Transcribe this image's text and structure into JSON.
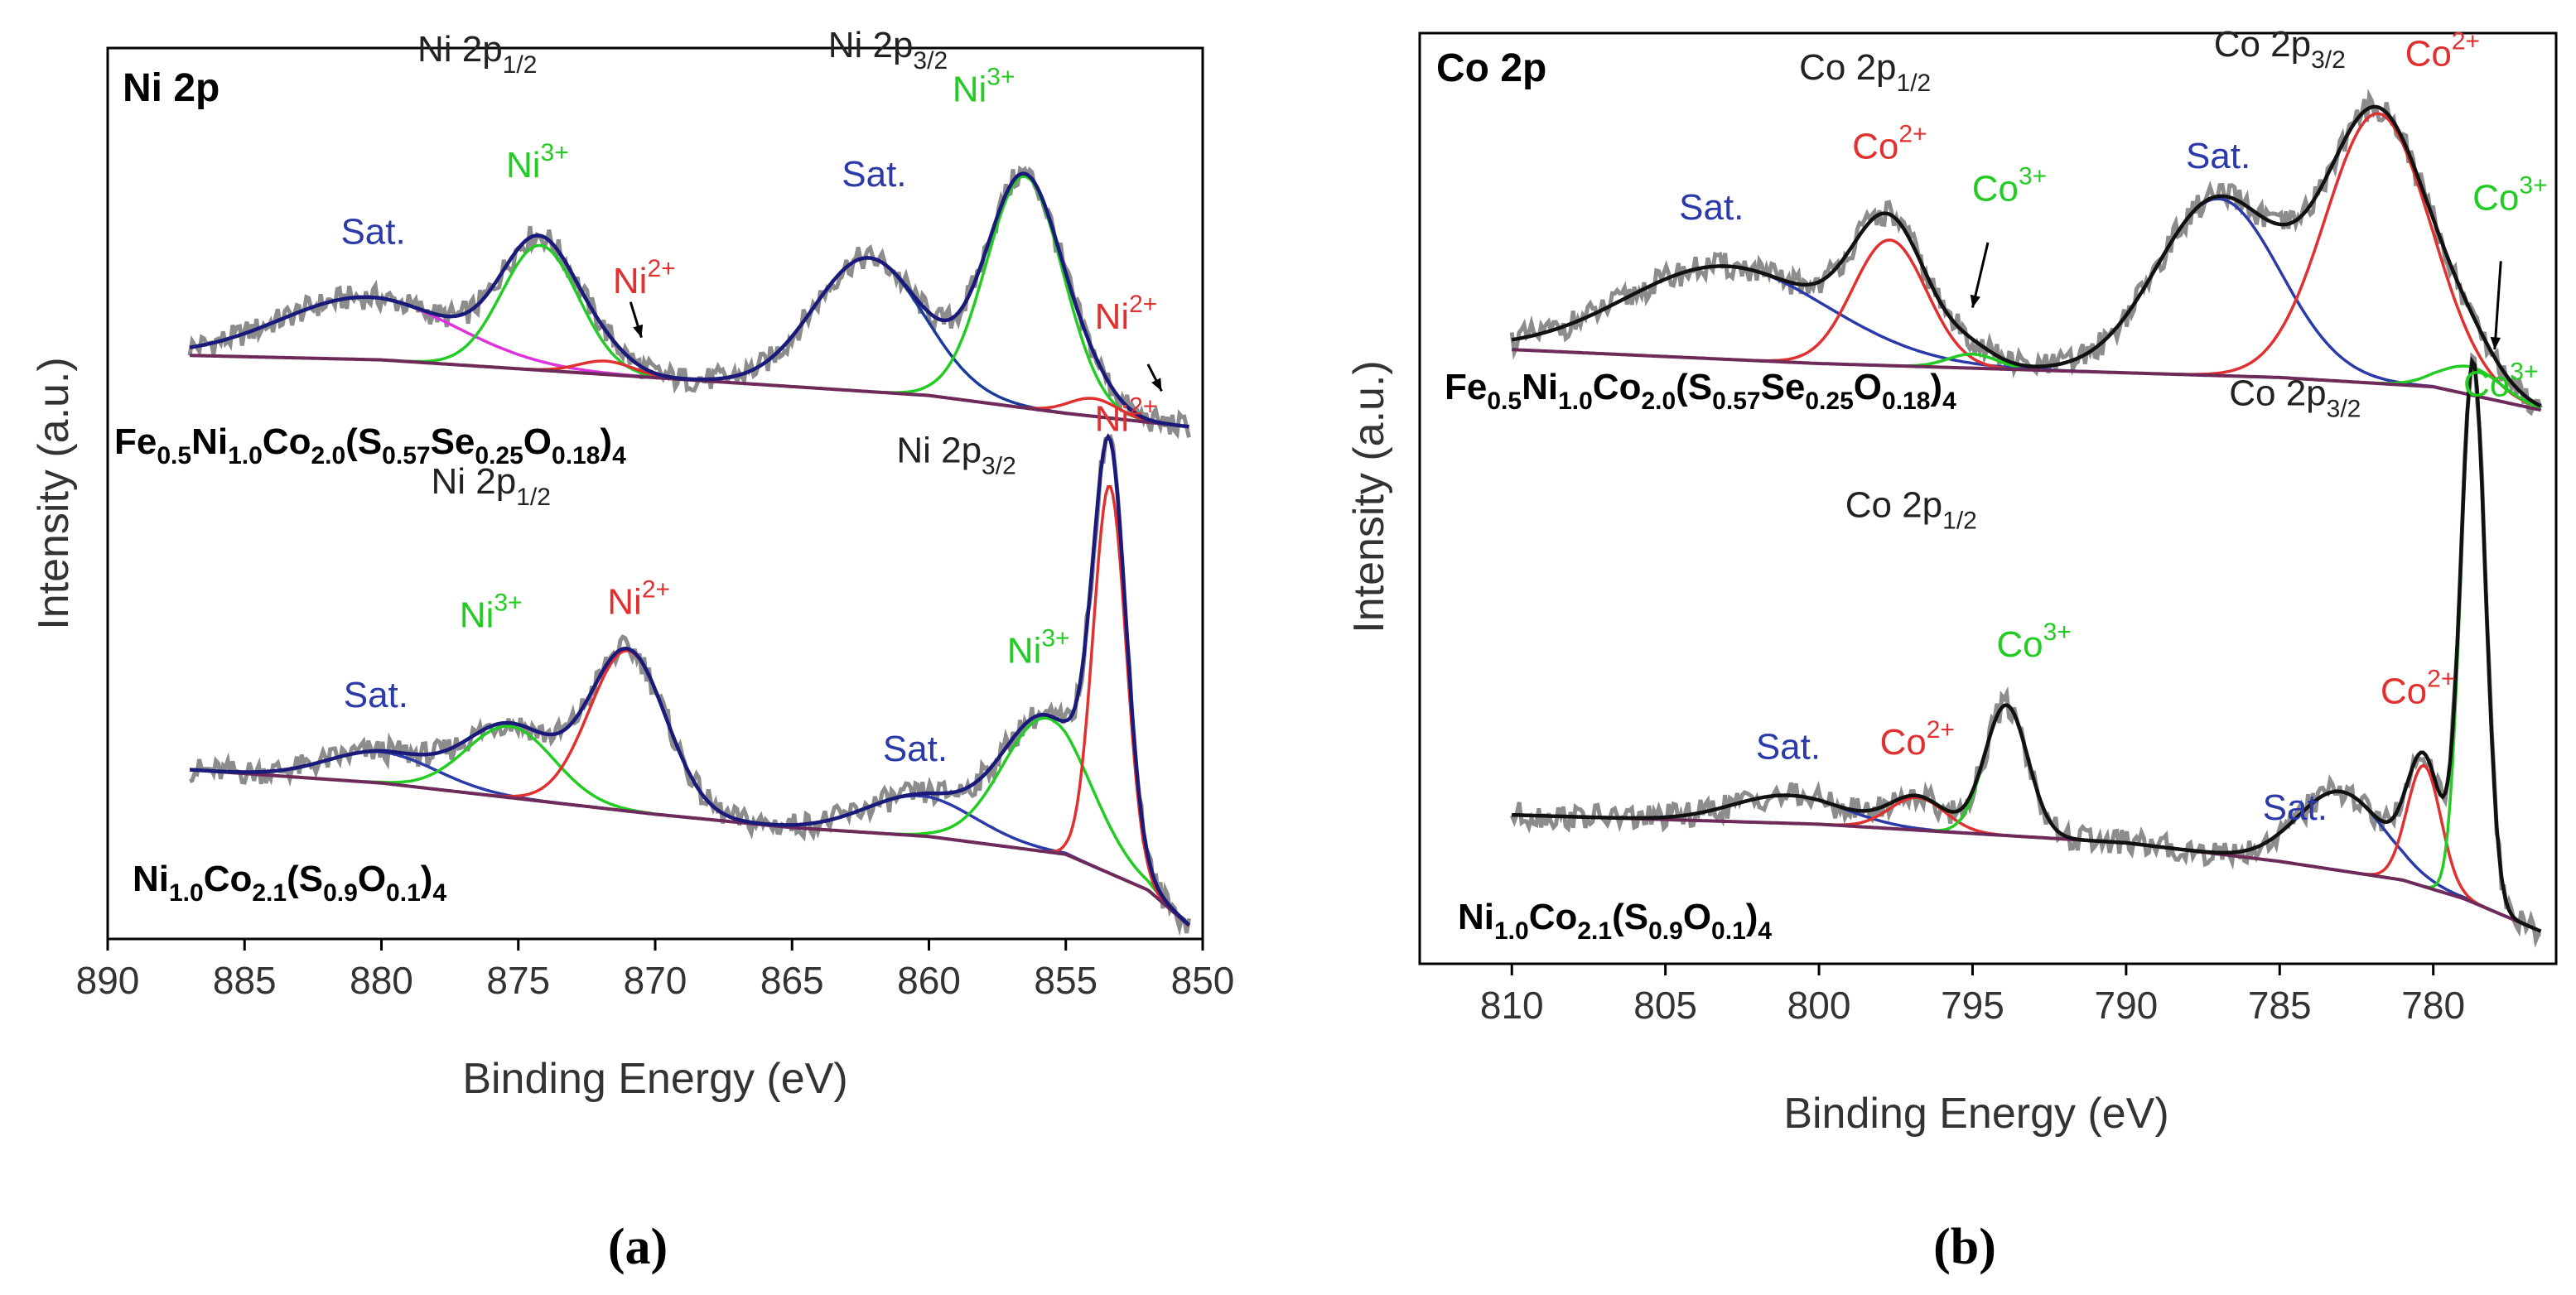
{
  "colors": {
    "raw": "#8c8c8c",
    "envelope_a": "#1a1a7a",
    "envelope_b": "#111111",
    "satellite": "#2b3aa8",
    "m3plus": "#22cc22",
    "m2plus": "#e03030",
    "background": "#6e2a5a",
    "ni2p12_sat_fit": "#dd33dd",
    "ni2p32_sat_fit": "#1b3b9b"
  },
  "chart_data": [
    {
      "id": "a",
      "type": "line",
      "title": "Ni 2p",
      "caption": "(a)",
      "xlabel": "Binding Energy (eV)",
      "ylabel": "Intensity (a.u.)",
      "xlim": [
        890,
        850
      ],
      "ylim": [
        0,
        10
      ],
      "x_ticks": [
        "890",
        "885",
        "880",
        "875",
        "870",
        "865",
        "860",
        "855",
        "850"
      ],
      "samples": [
        {
          "name": "Fe0.5Ni1.0Co2.0(S0.57Se0.25O0.18)4",
          "label_parts": [
            [
              "Fe",
              ""
            ],
            [
              "0.5",
              "sub"
            ],
            [
              "Ni",
              ""
            ],
            [
              "1.0",
              "sub"
            ],
            [
              "Co",
              ""
            ],
            [
              "2.0",
              "sub"
            ],
            [
              "(S",
              ""
            ],
            [
              "0.57",
              "sub"
            ],
            [
              "Se",
              ""
            ],
            [
              "0.25",
              "sub"
            ],
            [
              "O",
              ""
            ],
            [
              "0.18",
              "sub"
            ],
            [
              ")",
              ""
            ],
            [
              "4",
              "sub"
            ]
          ],
          "background_line": [
            [
              887,
              6.55
            ],
            [
              880,
              6.5
            ],
            [
              870,
              6.3
            ],
            [
              860,
              6.1
            ],
            [
              855,
              5.9
            ],
            [
              850.5,
              5.75
            ]
          ],
          "peaks": [
            {
              "name": "Sat.",
              "center": 880.5,
              "height": 0.7,
              "width": 3.2,
              "color_key": "ni2p12_sat_fit"
            },
            {
              "name": "Ni3+",
              "center": 874.2,
              "height": 1.4,
              "width": 1.4,
              "color_key": "m3plus"
            },
            {
              "name": "Ni2+",
              "center": 871.8,
              "height": 0.15,
              "width": 1.0,
              "color_key": "m2plus"
            },
            {
              "name": "Sat.",
              "center": 862.2,
              "height": 1.5,
              "width": 2.0,
              "color_key": "ni2p32_sat_fit"
            },
            {
              "name": "Ni3+",
              "center": 856.5,
              "height": 2.6,
              "width": 1.4,
              "color_key": "m3plus"
            },
            {
              "name": "Ni2+",
              "center": 854.0,
              "height": 0.2,
              "width": 0.9,
              "color_key": "m2plus"
            }
          ],
          "annotations": [
            {
              "text": "Ni 2p",
              "sup": "",
              "sub": "1/2",
              "x": 876.5,
              "y": 9.85,
              "color_key": "label_black"
            },
            {
              "text": "Ni 2p",
              "sup": "",
              "sub": "3/2",
              "x": 861.5,
              "y": 9.9,
              "color_key": "label_black"
            },
            {
              "text": "Sat.",
              "sup": "",
              "sub": "",
              "x": 880.3,
              "y": 7.8,
              "color_key": "satellite"
            },
            {
              "text": "Ni",
              "sup": "3+",
              "sub": "",
              "x": 874.3,
              "y": 8.55,
              "color_key": "m3plus"
            },
            {
              "text": "Ni",
              "sup": "2+",
              "sub": "",
              "x": 870.4,
              "y": 7.25,
              "color_key": "m2plus"
            },
            {
              "text": "Sat.",
              "sup": "",
              "sub": "",
              "x": 862.0,
              "y": 8.45,
              "color_key": "satellite"
            },
            {
              "text": "Ni",
              "sup": "3+",
              "sub": "",
              "x": 858.0,
              "y": 9.4,
              "color_key": "m3plus"
            },
            {
              "text": "Ni",
              "sup": "2+",
              "sub": "",
              "x": 852.8,
              "y": 6.85,
              "color_key": "m2plus"
            }
          ]
        },
        {
          "name": "Ni1.0Co2.1(S0.9O0.1)4",
          "label_parts": [
            [
              "Ni",
              ""
            ],
            [
              "1.0",
              "sub"
            ],
            [
              "Co",
              ""
            ],
            [
              "2.1",
              "sub"
            ],
            [
              "(S",
              ""
            ],
            [
              "0.9",
              "sub"
            ],
            [
              "O",
              ""
            ],
            [
              "0.1",
              "sub"
            ],
            [
              ")",
              ""
            ],
            [
              "4",
              "sub"
            ]
          ],
          "background_line": [
            [
              887,
              1.9
            ],
            [
              880,
              1.75
            ],
            [
              870,
              1.4
            ],
            [
              865,
              1.25
            ],
            [
              860,
              1.15
            ],
            [
              855,
              0.95
            ],
            [
              852,
              0.55
            ],
            [
              850.5,
              0.15
            ]
          ],
          "peaks": [
            {
              "name": "Sat.",
              "center": 880.0,
              "height": 0.35,
              "width": 2.0,
              "color_key": "satellite"
            },
            {
              "name": "Ni3+",
              "center": 875.3,
              "height": 0.8,
              "width": 1.6,
              "color_key": "m3plus"
            },
            {
              "name": "Ni2+",
              "center": 871.0,
              "height": 1.8,
              "width": 1.4,
              "color_key": "m2plus"
            },
            {
              "name": "Sat.",
              "center": 860.3,
              "height": 0.45,
              "width": 2.0,
              "color_key": "satellite"
            },
            {
              "name": "Ni3+",
              "center": 855.7,
              "height": 1.5,
              "width": 1.6,
              "color_key": "m3plus"
            },
            {
              "name": "Ni2+",
              "center": 853.4,
              "height": 4.35,
              "width": 0.6,
              "color_key": "m2plus"
            }
          ],
          "annotations": [
            {
              "text": "Ni 2p",
              "sup": "",
              "sub": "1/2",
              "x": 876.0,
              "y": 5.0,
              "color_key": "label_black"
            },
            {
              "text": "Ni 2p",
              "sup": "",
              "sub": "3/2",
              "x": 859.0,
              "y": 5.35,
              "color_key": "label_black"
            },
            {
              "text": "Ni",
              "sup": "2+",
              "sub": "",
              "x": 852.8,
              "y": 5.7,
              "color_key": "m2plus"
            },
            {
              "text": "Sat.",
              "sup": "",
              "sub": "",
              "x": 880.2,
              "y": 2.6,
              "color_key": "satellite"
            },
            {
              "text": "Ni",
              "sup": "3+",
              "sub": "",
              "x": 876.0,
              "y": 3.5,
              "color_key": "m3plus"
            },
            {
              "text": "Ni",
              "sup": "2+",
              "sub": "",
              "x": 870.6,
              "y": 3.65,
              "color_key": "m2plus"
            },
            {
              "text": "Sat.",
              "sup": "",
              "sub": "",
              "x": 860.5,
              "y": 2.0,
              "color_key": "satellite"
            },
            {
              "text": "Ni",
              "sup": "3+",
              "sub": "",
              "x": 856.0,
              "y": 3.1,
              "color_key": "m3plus"
            }
          ]
        }
      ]
    },
    {
      "id": "b",
      "type": "line",
      "title": "Co 2p",
      "caption": "(b)",
      "xlabel": "Binding Energy (eV)",
      "ylabel": "Intensity (a.u.)",
      "xlim": [
        813,
        776
      ],
      "ylim": [
        0,
        10
      ],
      "x_ticks": [
        "810",
        "805",
        "800",
        "795",
        "790",
        "785",
        "780"
      ],
      "samples": [
        {
          "name": "Fe0.5Ni1.0Co2.0(S0.57Se0.25O0.18)4",
          "label_parts": [
            [
              "Fe",
              ""
            ],
            [
              "0.5",
              "sub"
            ],
            [
              "Ni",
              ""
            ],
            [
              "1.0",
              "sub"
            ],
            [
              "Co",
              ""
            ],
            [
              "2.0",
              "sub"
            ],
            [
              "(S",
              ""
            ],
            [
              "0.57",
              "sub"
            ],
            [
              "Se",
              ""
            ],
            [
              "0.25",
              "sub"
            ],
            [
              "O",
              ""
            ],
            [
              "0.18",
              "sub"
            ],
            [
              ")",
              ""
            ],
            [
              "4",
              "sub"
            ]
          ],
          "background_line": [
            [
              810,
              6.6
            ],
            [
              800,
              6.45
            ],
            [
              790,
              6.35
            ],
            [
              785,
              6.3
            ],
            [
              780,
              6.2
            ],
            [
              776.5,
              5.95
            ]
          ],
          "peaks": [
            {
              "name": "Sat.",
              "center": 803.0,
              "height": 1.0,
              "width": 3.3,
              "color_key": "satellite"
            },
            {
              "name": "Co2+",
              "center": 797.7,
              "height": 1.35,
              "width": 1.2,
              "color_key": "m2plus"
            },
            {
              "name": "Co3+",
              "center": 795.0,
              "height": 0.15,
              "width": 0.8,
              "color_key": "m3plus"
            },
            {
              "name": "Sat.",
              "center": 787.0,
              "height": 1.9,
              "width": 2.0,
              "color_key": "satellite"
            },
            {
              "name": "Co2+",
              "center": 781.8,
              "height": 2.9,
              "width": 1.7,
              "color_key": "m2plus"
            },
            {
              "name": "Co3+",
              "center": 778.8,
              "height": 0.3,
              "width": 1.0,
              "color_key": "m3plus"
            }
          ],
          "annotations": [
            {
              "text": "Co 2p",
              "sup": "",
              "sub": "1/2",
              "x": 798.5,
              "y": 9.5,
              "color_key": "label_black"
            },
            {
              "text": "Co 2p",
              "sup": "",
              "sub": "3/2",
              "x": 785.0,
              "y": 9.75,
              "color_key": "label_black"
            },
            {
              "text": "Sat.",
              "sup": "",
              "sub": "",
              "x": 803.5,
              "y": 8.0,
              "color_key": "satellite"
            },
            {
              "text": "Co",
              "sup": "2+",
              "sub": "",
              "x": 797.7,
              "y": 8.65,
              "color_key": "m2plus"
            },
            {
              "text": "Co",
              "sup": "3+",
              "sub": "",
              "x": 793.8,
              "y": 8.2,
              "color_key": "m3plus"
            },
            {
              "text": "Sat.",
              "sup": "",
              "sub": "",
              "x": 787.0,
              "y": 8.55,
              "color_key": "satellite"
            },
            {
              "text": "Co",
              "sup": "2+",
              "sub": "",
              "x": 779.7,
              "y": 9.65,
              "color_key": "m2plus"
            },
            {
              "text": "Co",
              "sup": "3+",
              "sub": "",
              "x": 777.5,
              "y": 8.1,
              "color_key": "m3plus"
            }
          ]
        },
        {
          "name": "Ni1.0Co2.1(S0.9O0.1)4",
          "label_parts": [
            [
              "Ni",
              ""
            ],
            [
              "1.0",
              "sub"
            ],
            [
              "Co",
              ""
            ],
            [
              "2.1",
              "sub"
            ],
            [
              "(S",
              ""
            ],
            [
              "0.9",
              "sub"
            ],
            [
              "O",
              ""
            ],
            [
              "0.1",
              "sub"
            ],
            [
              ")",
              ""
            ],
            [
              "4",
              "sub"
            ]
          ],
          "background_line": [
            [
              810,
              1.6
            ],
            [
              800,
              1.5
            ],
            [
              790,
              1.3
            ],
            [
              785,
              1.1
            ],
            [
              781,
              0.9
            ],
            [
              779,
              0.7
            ],
            [
              776.5,
              0.35
            ]
          ],
          "peaks": [
            {
              "name": "Sat.",
              "center": 801.0,
              "height": 0.3,
              "width": 1.8,
              "color_key": "satellite"
            },
            {
              "name": "Co2+",
              "center": 796.8,
              "height": 0.35,
              "width": 0.9,
              "color_key": "m2plus"
            },
            {
              "name": "Co3+",
              "center": 793.9,
              "height": 1.4,
              "width": 0.7,
              "color_key": "m3plus"
            },
            {
              "name": "Sat.",
              "center": 783.0,
              "height": 0.85,
              "width": 1.4,
              "color_key": "satellite"
            },
            {
              "name": "Co2+",
              "center": 780.3,
              "height": 1.3,
              "width": 0.55,
              "color_key": "m2plus"
            },
            {
              "name": "Co3+",
              "center": 778.7,
              "height": 5.8,
              "width": 0.4,
              "color_key": "m3plus"
            }
          ],
          "annotations": [
            {
              "text": "Co 2p",
              "sup": "",
              "sub": "3/2",
              "x": 784.5,
              "y": 6.0,
              "color_key": "label_black"
            },
            {
              "text": "Co",
              "sup": "3+",
              "sub": "",
              "x": 777.8,
              "y": 6.1,
              "color_key": "m3plus"
            },
            {
              "text": "Co 2p",
              "sup": "",
              "sub": "1/2",
              "x": 797.0,
              "y": 4.8,
              "color_key": "label_black"
            },
            {
              "text": "Co",
              "sup": "3+",
              "sub": "",
              "x": 793.0,
              "y": 3.3,
              "color_key": "m3plus"
            },
            {
              "text": "Sat.",
              "sup": "",
              "sub": "",
              "x": 801.0,
              "y": 2.2,
              "color_key": "satellite"
            },
            {
              "text": "Co",
              "sup": "2+",
              "sub": "",
              "x": 796.8,
              "y": 2.25,
              "color_key": "m2plus"
            },
            {
              "text": "Co",
              "sup": "2+",
              "sub": "",
              "x": 780.5,
              "y": 2.8,
              "color_key": "m2plus"
            },
            {
              "text": "Sat.",
              "sup": "",
              "sub": "",
              "x": 784.5,
              "y": 1.55,
              "color_key": "satellite"
            }
          ]
        }
      ]
    }
  ]
}
